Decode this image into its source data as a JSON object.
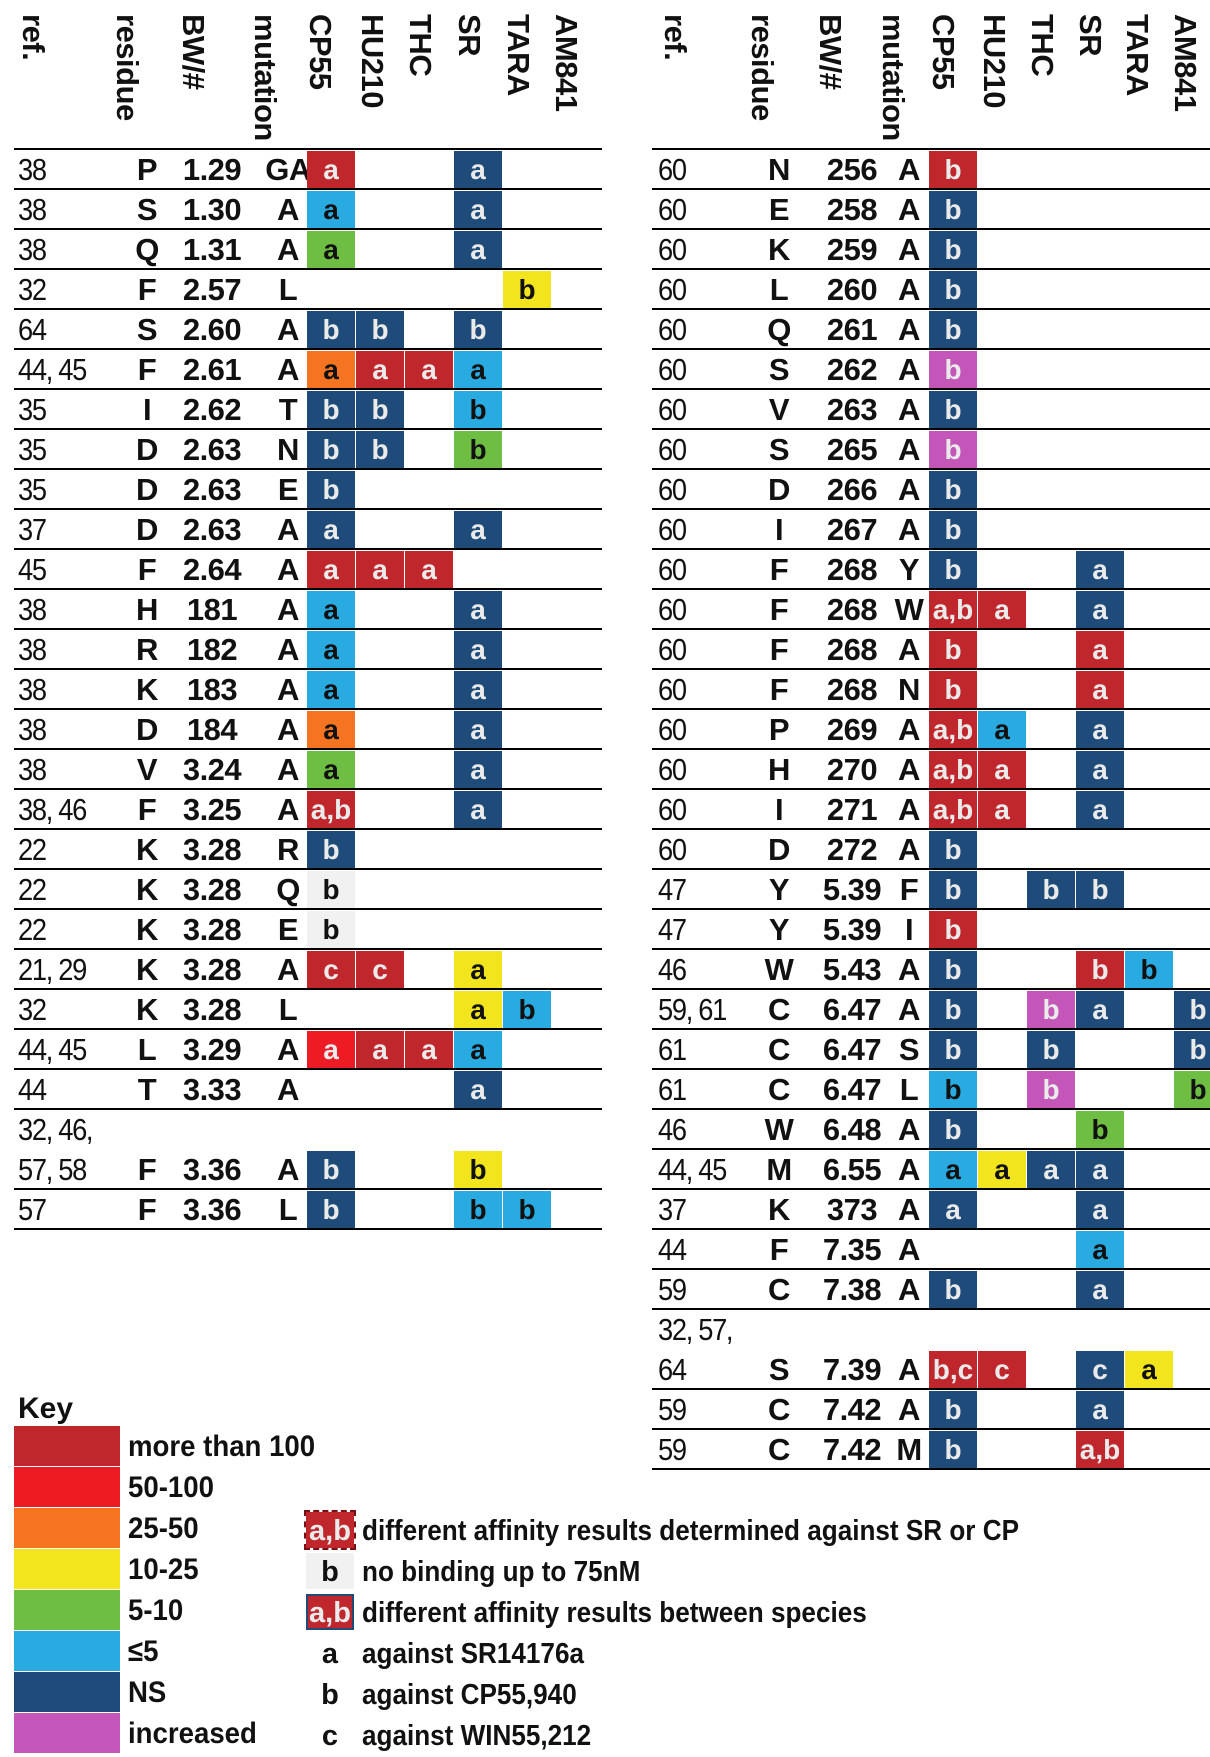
{
  "colors": {
    "gt100": "#c0272d",
    "50to100": "#ed1c24",
    "25to50": "#f47421",
    "10to25": "#f2e51d",
    "5to10": "#6ebe44",
    "le5": "#29aae1",
    "ns": "#1e4b7a",
    "increased": "#c356b8",
    "nobinding": "#f1f1f1"
  },
  "headers": [
    "ref.",
    "residue",
    "BW/#",
    "mutation",
    "CP55",
    "HU210",
    "THC",
    "SR",
    "TARA",
    "AM841"
  ],
  "left_rows": [
    {
      "ref": "38",
      "res": "P",
      "bw": "1.29",
      "mut": "GA",
      "c": [
        [
          "gt100",
          "a"
        ],
        null,
        null,
        [
          "ns",
          "a"
        ],
        null,
        null
      ]
    },
    {
      "ref": "38",
      "res": "S",
      "bw": "1.30",
      "mut": "A",
      "c": [
        [
          "le5",
          "a"
        ],
        null,
        null,
        [
          "ns",
          "a"
        ],
        null,
        null
      ]
    },
    {
      "ref": "38",
      "res": "Q",
      "bw": "1.31",
      "mut": "A",
      "c": [
        [
          "5to10",
          "a"
        ],
        null,
        null,
        [
          "ns",
          "a"
        ],
        null,
        null
      ]
    },
    {
      "ref": "32",
      "res": "F",
      "bw": "2.57",
      "mut": "L",
      "c": [
        null,
        null,
        null,
        null,
        [
          "10to25",
          "b"
        ],
        null
      ]
    },
    {
      "ref": "64",
      "res": "S",
      "bw": "2.60",
      "mut": "A",
      "c": [
        [
          "ns",
          "b"
        ],
        [
          "ns",
          "b"
        ],
        null,
        [
          "ns",
          "b"
        ],
        null,
        null
      ]
    },
    {
      "ref": "44, 45",
      "res": "F",
      "bw": "2.61",
      "mut": "A",
      "c": [
        [
          "25to50",
          "a"
        ],
        [
          "gt100",
          "a"
        ],
        [
          "gt100",
          "a"
        ],
        [
          "le5",
          "a"
        ],
        null,
        null
      ]
    },
    {
      "ref": "35",
      "res": "I",
      "bw": "2.62",
      "mut": "T",
      "c": [
        [
          "ns",
          "b"
        ],
        [
          "ns",
          "b"
        ],
        null,
        [
          "le5",
          "b"
        ],
        null,
        null
      ]
    },
    {
      "ref": "35",
      "res": "D",
      "bw": "2.63",
      "mut": "N",
      "c": [
        [
          "ns",
          "b"
        ],
        [
          "ns",
          "b"
        ],
        null,
        [
          "5to10",
          "b"
        ],
        null,
        null
      ]
    },
    {
      "ref": "35",
      "res": "D",
      "bw": "2.63",
      "mut": "E",
      "c": [
        [
          "ns",
          "b"
        ],
        null,
        null,
        null,
        null,
        null
      ]
    },
    {
      "ref": "37",
      "res": "D",
      "bw": "2.63",
      "mut": "A",
      "c": [
        [
          "ns",
          "a"
        ],
        null,
        null,
        [
          "ns",
          "a"
        ],
        null,
        null
      ]
    },
    {
      "ref": "45",
      "res": "F",
      "bw": "2.64",
      "mut": "A",
      "c": [
        [
          "gt100",
          "a"
        ],
        [
          "gt100",
          "a"
        ],
        [
          "gt100",
          "a"
        ],
        null,
        null,
        null
      ]
    },
    {
      "ref": "38",
      "res": "H",
      "bw": "181",
      "mut": "A",
      "c": [
        [
          "le5",
          "a"
        ],
        null,
        null,
        [
          "ns",
          "a"
        ],
        null,
        null
      ]
    },
    {
      "ref": "38",
      "res": "R",
      "bw": "182",
      "mut": "A",
      "c": [
        [
          "le5",
          "a"
        ],
        null,
        null,
        [
          "ns",
          "a"
        ],
        null,
        null
      ]
    },
    {
      "ref": "38",
      "res": "K",
      "bw": "183",
      "mut": "A",
      "c": [
        [
          "le5",
          "a"
        ],
        null,
        null,
        [
          "ns",
          "a"
        ],
        null,
        null
      ]
    },
    {
      "ref": "38",
      "res": "D",
      "bw": "184",
      "mut": "A",
      "c": [
        [
          "25to50",
          "a"
        ],
        null,
        null,
        [
          "ns",
          "a"
        ],
        null,
        null
      ]
    },
    {
      "ref": "38",
      "res": "V",
      "bw": "3.24",
      "mut": "A",
      "c": [
        [
          "5to10",
          "a"
        ],
        null,
        null,
        [
          "ns",
          "a"
        ],
        null,
        null
      ]
    },
    {
      "ref": "38, 46",
      "res": "F",
      "bw": "3.25",
      "mut": "A",
      "c": [
        [
          "gt100",
          "a,b"
        ],
        null,
        null,
        [
          "ns",
          "a"
        ],
        null,
        null
      ]
    },
    {
      "ref": "22",
      "res": "K",
      "bw": "3.28",
      "mut": "R",
      "c": [
        [
          "ns",
          "b"
        ],
        null,
        null,
        null,
        null,
        null
      ]
    },
    {
      "ref": "22",
      "res": "K",
      "bw": "3.28",
      "mut": "Q",
      "c": [
        [
          "nobinding",
          "b"
        ],
        null,
        null,
        null,
        null,
        null
      ]
    },
    {
      "ref": "22",
      "res": "K",
      "bw": "3.28",
      "mut": "E",
      "c": [
        [
          "nobinding",
          "b"
        ],
        null,
        null,
        null,
        null,
        null
      ]
    },
    {
      "ref": "21, 29",
      "res": "K",
      "bw": "3.28",
      "mut": "A",
      "c": [
        [
          "gt100",
          "c"
        ],
        [
          "gt100",
          "c"
        ],
        null,
        [
          "10to25",
          "a"
        ],
        null,
        null
      ]
    },
    {
      "ref": "32",
      "res": "K",
      "bw": "3.28",
      "mut": "L",
      "c": [
        null,
        null,
        null,
        [
          "10to25",
          "a"
        ],
        [
          "le5",
          "b"
        ],
        null
      ]
    },
    {
      "ref": "44, 45",
      "res": "L",
      "bw": "3.29",
      "mut": "A",
      "c": [
        [
          "50to100",
          "a"
        ],
        [
          "gt100",
          "a"
        ],
        [
          "gt100",
          "a"
        ],
        [
          "le5",
          "a"
        ],
        null,
        null
      ]
    },
    {
      "ref": "44",
      "res": "T",
      "bw": "3.33",
      "mut": "A",
      "c": [
        null,
        null,
        null,
        [
          "ns",
          "a"
        ],
        null,
        null
      ]
    },
    {
      "ref": "32, 46,",
      "res": "",
      "bw": "",
      "mut": "",
      "c": [
        null,
        null,
        null,
        null,
        null,
        null
      ],
      "noline": true
    },
    {
      "ref": "57, 58",
      "res": "F",
      "bw": "3.36",
      "mut": "A",
      "c": [
        [
          "ns",
          "b"
        ],
        null,
        null,
        [
          "10to25",
          "b"
        ],
        null,
        null
      ]
    },
    {
      "ref": "57",
      "res": "F",
      "bw": "3.36",
      "mut": "L",
      "c": [
        [
          "ns",
          "b"
        ],
        null,
        null,
        [
          "le5",
          "b"
        ],
        [
          "le5",
          "b"
        ],
        null
      ]
    }
  ],
  "right_rows": [
    {
      "ref": "60",
      "res": "N",
      "bw": "256",
      "mut": "A",
      "c": [
        [
          "gt100",
          "b"
        ],
        null,
        null,
        null,
        null,
        null
      ]
    },
    {
      "ref": "60",
      "res": "E",
      "bw": "258",
      "mut": "A",
      "c": [
        [
          "ns",
          "b"
        ],
        null,
        null,
        null,
        null,
        null
      ]
    },
    {
      "ref": "60",
      "res": "K",
      "bw": "259",
      "mut": "A",
      "c": [
        [
          "ns",
          "b"
        ],
        null,
        null,
        null,
        null,
        null
      ]
    },
    {
      "ref": "60",
      "res": "L",
      "bw": "260",
      "mut": "A",
      "c": [
        [
          "ns",
          "b"
        ],
        null,
        null,
        null,
        null,
        null
      ]
    },
    {
      "ref": "60",
      "res": "Q",
      "bw": "261",
      "mut": "A",
      "c": [
        [
          "ns",
          "b"
        ],
        null,
        null,
        null,
        null,
        null
      ]
    },
    {
      "ref": "60",
      "res": "S",
      "bw": "262",
      "mut": "A",
      "c": [
        [
          "increased",
          "b"
        ],
        null,
        null,
        null,
        null,
        null
      ]
    },
    {
      "ref": "60",
      "res": "V",
      "bw": "263",
      "mut": "A",
      "c": [
        [
          "ns",
          "b"
        ],
        null,
        null,
        null,
        null,
        null
      ]
    },
    {
      "ref": "60",
      "res": "S",
      "bw": "265",
      "mut": "A",
      "c": [
        [
          "increased",
          "b"
        ],
        null,
        null,
        null,
        null,
        null
      ]
    },
    {
      "ref": "60",
      "res": "D",
      "bw": "266",
      "mut": "A",
      "c": [
        [
          "ns",
          "b"
        ],
        null,
        null,
        null,
        null,
        null
      ]
    },
    {
      "ref": "60",
      "res": "I",
      "bw": "267",
      "mut": "A",
      "c": [
        [
          "ns",
          "b"
        ],
        null,
        null,
        null,
        null,
        null
      ]
    },
    {
      "ref": "60",
      "res": "F",
      "bw": "268",
      "mut": "Y",
      "c": [
        [
          "ns",
          "b"
        ],
        null,
        null,
        [
          "ns",
          "a"
        ],
        null,
        null
      ]
    },
    {
      "ref": "60",
      "res": "F",
      "bw": "268",
      "mut": "W",
      "c": [
        [
          "gt100",
          "a,b"
        ],
        [
          "gt100",
          "a"
        ],
        null,
        [
          "ns",
          "a"
        ],
        null,
        null
      ]
    },
    {
      "ref": "60",
      "res": "F",
      "bw": "268",
      "mut": "A",
      "c": [
        [
          "gt100",
          "b"
        ],
        null,
        null,
        [
          "gt100",
          "a"
        ],
        null,
        null
      ]
    },
    {
      "ref": "60",
      "res": "F",
      "bw": "268",
      "mut": "N",
      "c": [
        [
          "gt100",
          "b"
        ],
        null,
        null,
        [
          "gt100",
          "a"
        ],
        null,
        null
      ]
    },
    {
      "ref": "60",
      "res": "P",
      "bw": "269",
      "mut": "A",
      "c": [
        [
          "gt100",
          "a,b"
        ],
        [
          "le5",
          "a"
        ],
        null,
        [
          "ns",
          "a"
        ],
        null,
        null
      ]
    },
    {
      "ref": "60",
      "res": "H",
      "bw": "270",
      "mut": "A",
      "c": [
        [
          "gt100",
          "a,b"
        ],
        [
          "gt100",
          "a"
        ],
        null,
        [
          "ns",
          "a"
        ],
        null,
        null
      ]
    },
    {
      "ref": "60",
      "res": "I",
      "bw": "271",
      "mut": "A",
      "c": [
        [
          "gt100",
          "a,b"
        ],
        [
          "gt100",
          "a"
        ],
        null,
        [
          "ns",
          "a"
        ],
        null,
        null
      ]
    },
    {
      "ref": "60",
      "res": "D",
      "bw": "272",
      "mut": "A",
      "c": [
        [
          "ns",
          "b"
        ],
        null,
        null,
        null,
        null,
        null
      ]
    },
    {
      "ref": "47",
      "res": "Y",
      "bw": "5.39",
      "mut": "F",
      "c": [
        [
          "ns",
          "b"
        ],
        null,
        [
          "ns",
          "b"
        ],
        [
          "ns",
          "b"
        ],
        null,
        null
      ]
    },
    {
      "ref": "47",
      "res": "Y",
      "bw": "5.39",
      "mut": "I",
      "c": [
        [
          "gt100",
          "b"
        ],
        null,
        null,
        null,
        null,
        null
      ]
    },
    {
      "ref": "46",
      "res": "W",
      "bw": "5.43",
      "mut": "A",
      "c": [
        [
          "ns",
          "b"
        ],
        null,
        null,
        [
          "gt100",
          "b"
        ],
        [
          "le5",
          "b"
        ],
        null
      ]
    },
    {
      "ref": "59, 61",
      "res": "C",
      "bw": "6.47",
      "mut": "A",
      "c": [
        [
          "ns",
          "b"
        ],
        null,
        [
          "increased",
          "b"
        ],
        [
          "ns",
          "a"
        ],
        null,
        [
          "ns",
          "b"
        ]
      ]
    },
    {
      "ref": "61",
      "res": "C",
      "bw": "6.47",
      "mut": "S",
      "c": [
        [
          "ns",
          "b"
        ],
        null,
        [
          "ns",
          "b"
        ],
        null,
        null,
        [
          "ns",
          "b"
        ]
      ]
    },
    {
      "ref": "61",
      "res": "C",
      "bw": "6.47",
      "mut": "L",
      "c": [
        [
          "le5",
          "b"
        ],
        null,
        [
          "increased",
          "b"
        ],
        null,
        null,
        [
          "5to10",
          "b"
        ]
      ]
    },
    {
      "ref": "46",
      "res": "W",
      "bw": "6.48",
      "mut": "A",
      "c": [
        [
          "ns",
          "b"
        ],
        null,
        null,
        [
          "5to10",
          "b"
        ],
        null,
        null
      ]
    },
    {
      "ref": "44, 45",
      "res": "M",
      "bw": "6.55",
      "mut": "A",
      "c": [
        [
          "le5",
          "a"
        ],
        [
          "10to25",
          "a"
        ],
        [
          "ns",
          "a"
        ],
        [
          "ns",
          "a"
        ],
        null,
        null
      ]
    },
    {
      "ref": "37",
      "res": "K",
      "bw": "373",
      "mut": "A",
      "c": [
        [
          "ns",
          "a"
        ],
        null,
        null,
        [
          "ns",
          "a"
        ],
        null,
        null
      ]
    },
    {
      "ref": "44",
      "res": "F",
      "bw": "7.35",
      "mut": "A",
      "c": [
        null,
        null,
        null,
        [
          "le5",
          "a"
        ],
        null,
        null
      ]
    },
    {
      "ref": "59",
      "res": "C",
      "bw": "7.38",
      "mut": "A",
      "c": [
        [
          "ns",
          "b"
        ],
        null,
        null,
        [
          "ns",
          "a"
        ],
        null,
        null
      ]
    },
    {
      "ref": "32, 57,",
      "res": "",
      "bw": "",
      "mut": "",
      "c": [
        null,
        null,
        null,
        null,
        null,
        null
      ],
      "noline": true
    },
    {
      "ref": "64",
      "res": "S",
      "bw": "7.39",
      "mut": "A",
      "c": [
        [
          "gt100",
          "b,c"
        ],
        [
          "gt100",
          "c"
        ],
        null,
        [
          "ns",
          "c"
        ],
        [
          "10to25",
          "a"
        ],
        null
      ]
    },
    {
      "ref": "59",
      "res": "C",
      "bw": "7.42",
      "mut": "A",
      "c": [
        [
          "ns",
          "b"
        ],
        null,
        null,
        [
          "ns",
          "a"
        ],
        null,
        null
      ]
    },
    {
      "ref": "59",
      "res": "C",
      "bw": "7.42",
      "mut": "M",
      "c": [
        [
          "ns",
          "b"
        ],
        null,
        null,
        [
          "gt100",
          "a,b"
        ],
        null,
        null
      ]
    }
  ],
  "key": {
    "title": "Key",
    "items": [
      {
        "color": "gt100",
        "label": "more than 100"
      },
      {
        "color": "50to100",
        "label": "50-100"
      },
      {
        "color": "25to50",
        "label": "25-50"
      },
      {
        "color": "10to25",
        "label": "10-25"
      },
      {
        "color": "5to10",
        "label": "5-10"
      },
      {
        "color": "le5",
        "label": "≤5"
      },
      {
        "color": "ns",
        "label": "NS"
      },
      {
        "color": "increased",
        "label": "increased"
      }
    ]
  },
  "legend": [
    {
      "sym": "a,b",
      "style": "dark-red",
      "text": "different affinity results determined against SR or CP"
    },
    {
      "sym": "b",
      "style": "grey",
      "text": "no binding up to 75nM"
    },
    {
      "sym": "a,b",
      "style": "red-outline",
      "text": "different affinity results between species"
    },
    {
      "sym": "a",
      "style": "plain",
      "text": "against SR14176a"
    },
    {
      "sym": "b",
      "style": "plain",
      "text": "against CP55,940"
    },
    {
      "sym": "c",
      "style": "plain",
      "text": "against WIN55,212"
    }
  ]
}
